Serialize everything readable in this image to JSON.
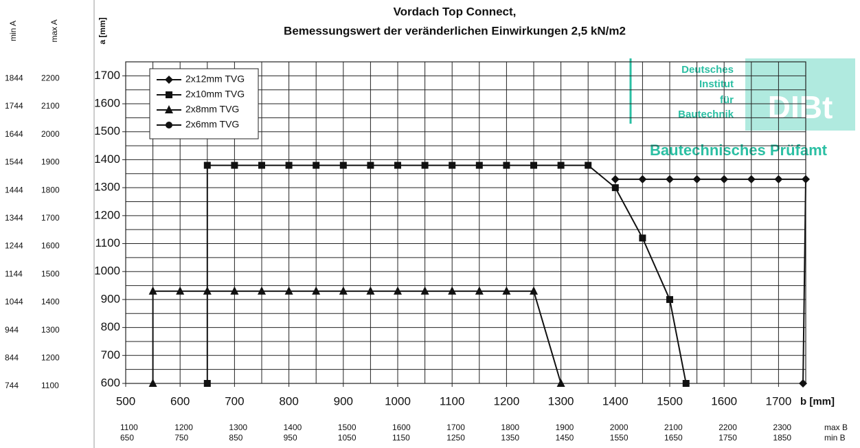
{
  "chart_data": {
    "type": "line",
    "title": "Vordach Top Connect,",
    "subtitle": "Bemessungswert der veränderlichen Einwirkungen 2,5 kN/m2",
    "xlabel": "b [mm]",
    "ylabel": "a [mm]",
    "xlim": [
      500,
      1750
    ],
    "ylim": [
      600,
      1750
    ],
    "xticks": [
      500,
      600,
      700,
      800,
      900,
      1000,
      1100,
      1200,
      1300,
      1400,
      1500,
      1600,
      1700
    ],
    "yticks": [
      600,
      700,
      800,
      900,
      1000,
      1100,
      1200,
      1300,
      1400,
      1500,
      1600,
      1700
    ],
    "xgrid": [
      550,
      600,
      650,
      700,
      750,
      800,
      850,
      900,
      950,
      1000,
      1050,
      1100,
      1150,
      1200,
      1250,
      1300,
      1350,
      1400,
      1450,
      1500,
      1550,
      1600,
      1650,
      1700
    ],
    "ygrid": [
      600,
      650,
      700,
      750,
      800,
      850,
      900,
      950,
      1000,
      1050,
      1100,
      1150,
      1200,
      1250,
      1300,
      1350,
      1400,
      1450,
      1500,
      1550,
      1600,
      1650,
      1700
    ],
    "legend": "upper left",
    "series": [
      {
        "name": "2x12mm TVG",
        "marker": "diamond",
        "color": "#111111",
        "x": [
          1400,
          1450,
          1500,
          1550,
          1600,
          1650,
          1700,
          1750,
          1745
        ],
        "values": [
          1330,
          1330,
          1330,
          1330,
          1330,
          1330,
          1330,
          1330,
          600
        ]
      },
      {
        "name": "2x10mm TVG",
        "marker": "square",
        "color": "#111111",
        "x": [
          650,
          650,
          700,
          750,
          800,
          850,
          900,
          950,
          1000,
          1050,
          1100,
          1150,
          1200,
          1250,
          1300,
          1350,
          1400,
          1450,
          1500,
          1530
        ],
        "values": [
          600,
          1380,
          1380,
          1380,
          1380,
          1380,
          1380,
          1380,
          1380,
          1380,
          1380,
          1380,
          1380,
          1380,
          1380,
          1380,
          1300,
          1120,
          900,
          600
        ]
      },
      {
        "name": "2x8mm TVG",
        "marker": "triangle",
        "color": "#111111",
        "x": [
          550,
          550,
          600,
          650,
          700,
          750,
          800,
          850,
          900,
          950,
          1000,
          1050,
          1100,
          1150,
          1200,
          1250,
          1300
        ],
        "values": [
          600,
          930,
          930,
          930,
          930,
          930,
          930,
          930,
          930,
          930,
          930,
          930,
          930,
          930,
          930,
          930,
          600
        ]
      },
      {
        "name": "2x6mm TVG",
        "marker": "circle",
        "color": "#111111",
        "x": [],
        "values": []
      }
    ],
    "left_columns": [
      {
        "name": "min A",
        "labels": [
          "1844",
          "1744",
          "1644",
          "1544",
          "1444",
          "1344",
          "1244",
          "1144",
          "1044",
          "944",
          "844",
          "744"
        ]
      },
      {
        "name": "max A",
        "labels": [
          "2200",
          "2100",
          "2000",
          "1900",
          "1800",
          "1700",
          "1600",
          "1500",
          "1400",
          "1300",
          "1200",
          "1100"
        ]
      }
    ],
    "bottom_rows": [
      {
        "name": "max B",
        "labels": [
          "1100",
          "1200",
          "1300",
          "1400",
          "1500",
          "1600",
          "1700",
          "1800",
          "1900",
          "2000",
          "2100",
          "2200",
          "2300"
        ]
      },
      {
        "name": "min B",
        "labels": [
          "650",
          "750",
          "850",
          "950",
          "1050",
          "1150",
          "1250",
          "1350",
          "1450",
          "1550",
          "1650",
          "1750",
          "1850"
        ]
      }
    ],
    "annotations": [
      "Deutsches",
      "Institut",
      "für",
      "Bautechnik",
      "DIBt",
      "Bautechnisches Prüfamt"
    ]
  }
}
